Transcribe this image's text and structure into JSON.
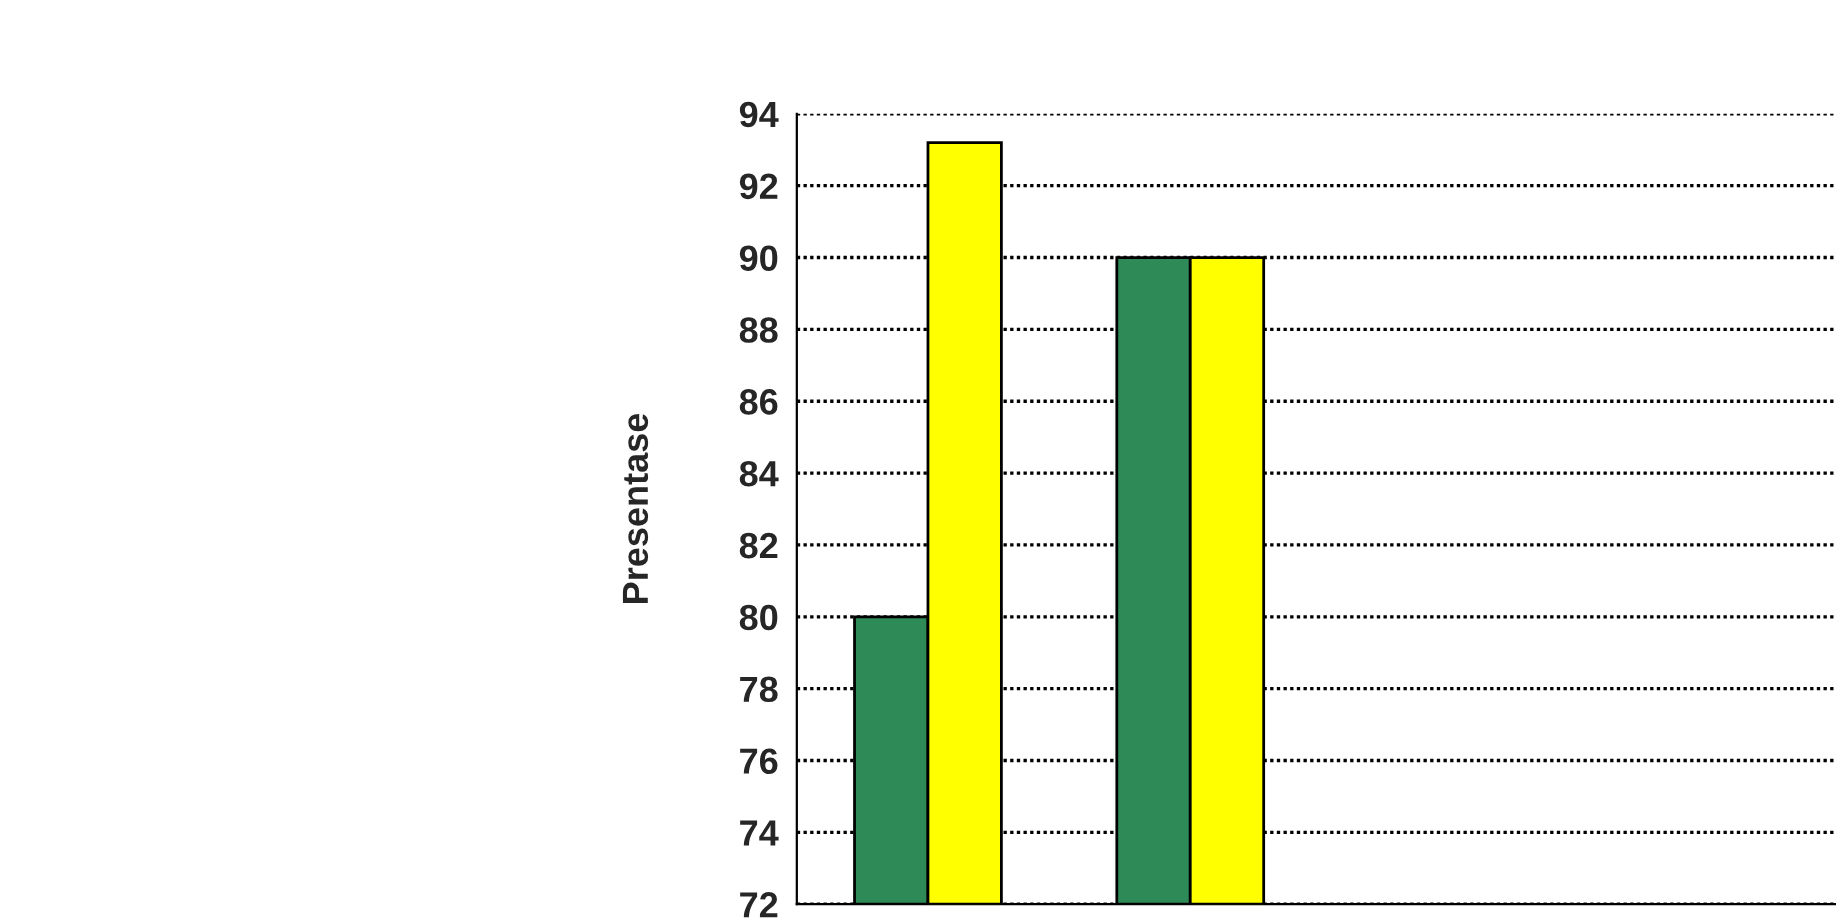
{
  "chart_data": {
    "type": "bar",
    "ylabel": "Presentase",
    "categories": [
      null,
      null,
      null,
      null
    ],
    "series": [
      {
        "color": "#2e8b57",
        "values": [
          80,
          90,
          null,
          null
        ]
      },
      {
        "color": "#ffff00",
        "values": [
          93.2,
          90,
          null,
          null
        ]
      }
    ],
    "ylim": [
      72,
      94
    ],
    "yticks": [
      72,
      74,
      76,
      78,
      80,
      82,
      84,
      86,
      88,
      90,
      92,
      94
    ],
    "grid": "y",
    "tick_labels": "y"
  }
}
